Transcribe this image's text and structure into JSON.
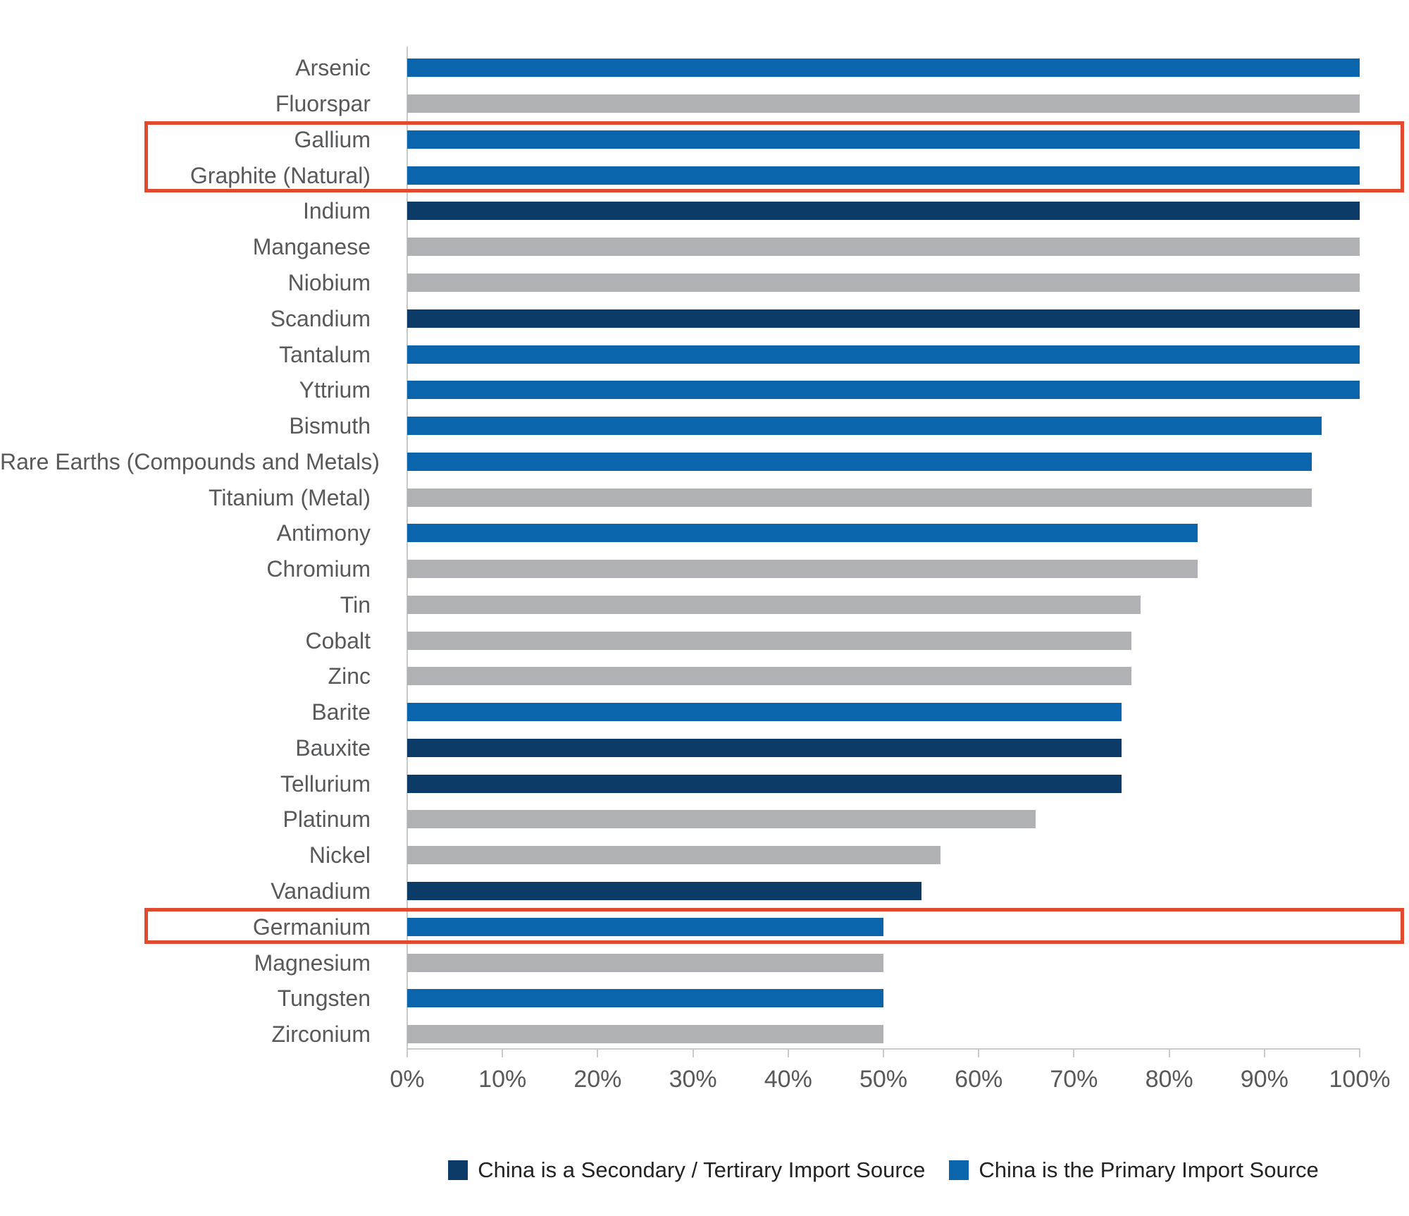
{
  "colors": {
    "primary": "#0A65AD",
    "secondary": "#0C3B67",
    "none": "#AFB1B4",
    "highlight_box": "#E14A2E",
    "axis": "#C9CACA",
    "category_label_text": "#58595B",
    "tick_label_text": "#58595B",
    "legend_text": "#232323"
  },
  "legend": {
    "items": [
      {
        "label": "China is a Secondary / Tertirary Import Source",
        "group": "secondary"
      },
      {
        "label": "China is the Primary Import Source",
        "group": "primary"
      }
    ]
  },
  "chart_data": {
    "type": "bar",
    "orientation": "horizontal",
    "title": "",
    "xlabel": "",
    "ylabel": "",
    "unit": "%",
    "xlim": [
      0,
      100
    ],
    "grid": false,
    "legend_position": "bottom",
    "x_tick_labels": [
      "0%",
      "10%",
      "20%",
      "30%",
      "40%",
      "50%",
      "60%",
      "70%",
      "80%",
      "90%",
      "100%"
    ],
    "categories": [
      "Arsenic",
      "Fluorspar",
      "Gallium",
      "Graphite (Natural)",
      "Indium",
      "Manganese",
      "Niobium",
      "Scandium",
      "Tantalum",
      "Yttrium",
      "Bismuth",
      "Rare Earths (Compounds and Metals)",
      "Titanium (Metal)",
      "Antimony",
      "Chromium",
      "Tin",
      "Cobalt",
      "Zinc",
      "Barite",
      "Bauxite",
      "Tellurium",
      "Platinum",
      "Nickel",
      "Vanadium",
      "Germanium",
      "Magnesium",
      "Tungsten",
      "Zirconium"
    ],
    "values": [
      100,
      100,
      100,
      100,
      100,
      100,
      100,
      100,
      100,
      100,
      96,
      95,
      95,
      83,
      83,
      77,
      76,
      76,
      75,
      75,
      75,
      66,
      56,
      54,
      50,
      50,
      50,
      50
    ],
    "groups": [
      "primary",
      "none",
      "primary",
      "primary",
      "secondary",
      "none",
      "none",
      "secondary",
      "primary",
      "primary",
      "primary",
      "primary",
      "none",
      "primary",
      "none",
      "none",
      "none",
      "none",
      "primary",
      "secondary",
      "secondary",
      "none",
      "none",
      "secondary",
      "primary",
      "none",
      "primary",
      "none"
    ],
    "highlighted_categories": [
      "Gallium",
      "Graphite (Natural)",
      "Germanium"
    ]
  }
}
